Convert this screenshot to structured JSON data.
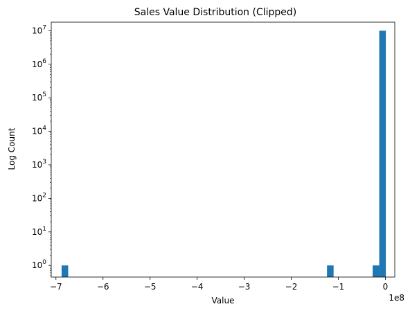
{
  "chart_data": {
    "type": "bar",
    "title": "Sales Value Distribution (Clipped)",
    "xlabel": "Value",
    "ylabel": "Log Count",
    "x_offset_label": "1e8",
    "x_scale": "linear",
    "y_scale": "log",
    "xlim": [
      -7.1,
      0.2
    ],
    "ylim": [
      0.45,
      18000000
    ],
    "x_ticks": [
      {
        "value": -7,
        "label": "−7"
      },
      {
        "value": -6,
        "label": "−6"
      },
      {
        "value": -5,
        "label": "−5"
      },
      {
        "value": -4,
        "label": "−4"
      },
      {
        "value": -3,
        "label": "−3"
      },
      {
        "value": -2,
        "label": "−2"
      },
      {
        "value": -1,
        "label": "−1"
      },
      {
        "value": 0,
        "label": "0"
      }
    ],
    "y_ticks": [
      {
        "value": 1,
        "base": "10",
        "exp": "0"
      },
      {
        "value": 10,
        "base": "10",
        "exp": "1"
      },
      {
        "value": 100,
        "base": "10",
        "exp": "2"
      },
      {
        "value": 1000,
        "base": "10",
        "exp": "3"
      },
      {
        "value": 10000,
        "base": "10",
        "exp": "4"
      },
      {
        "value": 100000,
        "base": "10",
        "exp": "5"
      },
      {
        "value": 1000000,
        "base": "10",
        "exp": "6"
      },
      {
        "value": 10000000,
        "base": "10",
        "exp": "7"
      }
    ],
    "bar_color": "#1f77b4",
    "bins": [
      {
        "x0": -6.88,
        "x1": -6.74,
        "count": 1
      },
      {
        "x0": -1.24,
        "x1": -1.1,
        "count": 1
      },
      {
        "x0": -0.27,
        "x1": -0.13,
        "count": 1
      },
      {
        "x0": -0.13,
        "x1": 0.01,
        "count": 10000000
      }
    ],
    "grid": false,
    "legend": "none"
  }
}
